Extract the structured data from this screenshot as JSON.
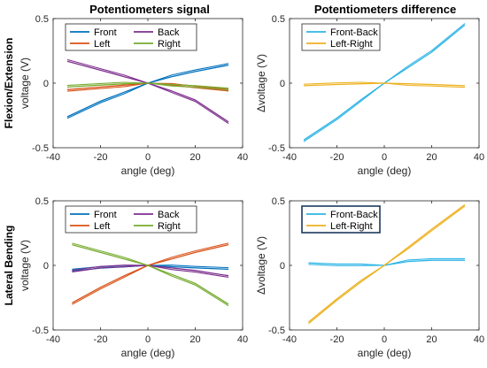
{
  "col_titles": [
    "Potentiometers signal",
    "Potentiometers difference"
  ],
  "row_labels": [
    "Flexion/Extension",
    "Lateral Bending"
  ],
  "colors": {
    "front": "#0072BD",
    "back": "#7E2F8E",
    "left": "#D95319",
    "right": "#77AC30",
    "front_back": "#2EB5E6",
    "left_right": "#EDB120"
  },
  "chart_data": [
    {
      "type": "line",
      "title": "Potentiometers signal",
      "row_label": "Flexion/Extension",
      "xlabel": "angle (deg)",
      "ylabel": "voltage (V)",
      "xlim": [
        -40,
        40
      ],
      "ylim": [
        -0.5,
        0.5
      ],
      "xticks": [
        "-40",
        "-20",
        "0",
        "20",
        "40"
      ],
      "yticks": [
        "-0.5",
        "0",
        "0.5"
      ],
      "legend_position": "top",
      "legend_columns": 2,
      "series": [
        {
          "name": "Front",
          "color": "#0072BD",
          "x": [
            -34,
            -20,
            -10,
            0,
            10,
            20,
            34
          ],
          "y": [
            -0.26,
            -0.14,
            -0.07,
            0.0,
            0.05,
            0.09,
            0.14
          ]
        },
        {
          "name": "Back",
          "color": "#7E2F8E",
          "x": [
            -34,
            -20,
            -10,
            0,
            10,
            20,
            34
          ],
          "y": [
            0.17,
            0.1,
            0.05,
            0.0,
            -0.06,
            -0.13,
            -0.3
          ]
        },
        {
          "name": "Left",
          "color": "#D95319",
          "x": [
            -34,
            -20,
            -10,
            0,
            10,
            20,
            34
          ],
          "y": [
            -0.05,
            -0.03,
            -0.015,
            0.0,
            -0.015,
            -0.035,
            -0.06
          ]
        },
        {
          "name": "Right",
          "color": "#77AC30",
          "x": [
            -34,
            -20,
            -10,
            0,
            10,
            20,
            34
          ],
          "y": [
            -0.03,
            -0.015,
            -0.005,
            0.0,
            -0.01,
            -0.02,
            -0.04
          ]
        }
      ]
    },
    {
      "type": "line",
      "title": "Potentiometers difference",
      "row_label": "Flexion/Extension",
      "xlabel": "angle (deg)",
      "ylabel": "Δvoltage (V)",
      "xlim": [
        -40,
        40
      ],
      "ylim": [
        -0.5,
        0.5
      ],
      "xticks": [
        "-40",
        "-20",
        "0",
        "20",
        "40"
      ],
      "yticks": [
        "-0.5",
        "0",
        "0.5"
      ],
      "legend_position": "top-left",
      "legend_columns": 1,
      "series": [
        {
          "name": "Front-Back",
          "color": "#2EB5E6",
          "x": [
            -34,
            -20,
            -10,
            0,
            10,
            20,
            34
          ],
          "y": [
            -0.44,
            -0.27,
            -0.13,
            0.0,
            0.12,
            0.24,
            0.45
          ]
        },
        {
          "name": "Left-Right",
          "color": "#EDB120",
          "x": [
            -34,
            -20,
            -10,
            0,
            10,
            20,
            34
          ],
          "y": [
            -0.02,
            -0.01,
            -0.005,
            0.0,
            -0.005,
            -0.01,
            -0.02
          ]
        }
      ]
    },
    {
      "type": "line",
      "title": "",
      "row_label": "Lateral Bending",
      "xlabel": "angle (deg)",
      "ylabel": "voltage (V)",
      "xlim": [
        -40,
        40
      ],
      "ylim": [
        -0.5,
        0.5
      ],
      "xticks": [
        "-40",
        "-20",
        "0",
        "20",
        "40"
      ],
      "yticks": [
        "-0.5",
        "0",
        "0.5"
      ],
      "legend_position": "top",
      "legend_columns": 2,
      "series": [
        {
          "name": "Front",
          "color": "#0072BD",
          "x": [
            -32,
            -20,
            -10,
            0,
            10,
            20,
            34
          ],
          "y": [
            -0.03,
            -0.01,
            0.0,
            0.0,
            -0.01,
            -0.02,
            -0.03
          ]
        },
        {
          "name": "Back",
          "color": "#7E2F8E",
          "x": [
            -32,
            -20,
            -10,
            0,
            10,
            20,
            34
          ],
          "y": [
            -0.05,
            -0.02,
            -0.01,
            0.0,
            -0.02,
            -0.04,
            -0.08
          ]
        },
        {
          "name": "Left",
          "color": "#D95319",
          "x": [
            -32,
            -20,
            -10,
            0,
            10,
            20,
            34
          ],
          "y": [
            -0.29,
            -0.17,
            -0.08,
            0.0,
            0.05,
            0.1,
            0.16
          ]
        },
        {
          "name": "Right",
          "color": "#77AC30",
          "x": [
            -32,
            -20,
            -10,
            0,
            10,
            20,
            34
          ],
          "y": [
            0.16,
            0.1,
            0.05,
            0.0,
            -0.07,
            -0.14,
            -0.3
          ]
        }
      ]
    },
    {
      "type": "line",
      "title": "",
      "row_label": "Lateral Bending",
      "xlabel": "angle (deg)",
      "ylabel": "Δvoltage (V)",
      "xlim": [
        -40,
        40
      ],
      "ylim": [
        -0.5,
        0.5
      ],
      "xticks": [
        "-40",
        "-20",
        "0",
        "20",
        "40"
      ],
      "yticks": [
        "-0.5",
        "0",
        "0.5"
      ],
      "legend_position": "top-left",
      "legend_columns": 1,
      "series": [
        {
          "name": "Front-Back",
          "color": "#2EB5E6",
          "x": [
            -32,
            -20,
            -10,
            0,
            10,
            20,
            34
          ],
          "y": [
            0.02,
            0.01,
            0.01,
            0.0,
            0.03,
            0.04,
            0.04
          ]
        },
        {
          "name": "Left-Right",
          "color": "#EDB120",
          "x": [
            -32,
            -20,
            -10,
            0,
            10,
            20,
            34
          ],
          "y": [
            -0.45,
            -0.27,
            -0.13,
            0.0,
            0.14,
            0.28,
            0.47
          ]
        }
      ]
    }
  ]
}
